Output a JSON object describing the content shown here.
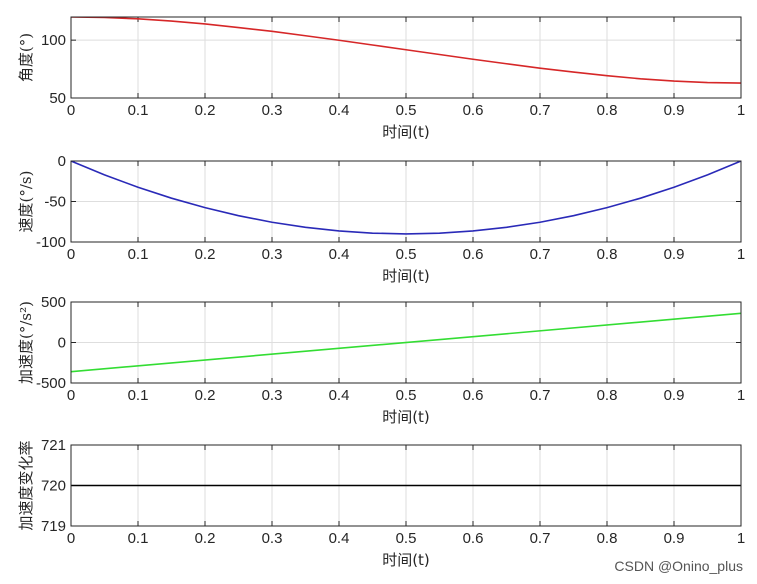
{
  "chart_data": [
    {
      "type": "line",
      "xlabel": "时间(t)",
      "ylabel": "角度(°)",
      "xlim": [
        0,
        1
      ],
      "ylim": [
        50,
        120
      ],
      "xticks": [
        "0",
        "0.1",
        "0.2",
        "0.3",
        "0.4",
        "0.5",
        "0.6",
        "0.7",
        "0.8",
        "0.9",
        "1"
      ],
      "yticks": [
        "50",
        "100"
      ],
      "grid": true,
      "series": [
        {
          "color": "#d62728",
          "x": [
            0,
            0.05,
            0.1,
            0.15,
            0.2,
            0.25,
            0.3,
            0.35,
            0.4,
            0.45,
            0.5,
            0.55,
            0.6,
            0.65,
            0.7,
            0.75,
            0.8,
            0.85,
            0.9,
            0.95,
            1
          ],
          "y": [
            120,
            119.6,
            118.4,
            116.5,
            114,
            110.9,
            107.6,
            103.8,
            99.9,
            95.8,
            91.7,
            87.6,
            83.5,
            79.6,
            75.8,
            72.4,
            69.3,
            66.6,
            64.6,
            63.3,
            62.9
          ]
        }
      ]
    },
    {
      "type": "line",
      "xlabel": "时间(t)",
      "ylabel": "速度(°/s)",
      "xlim": [
        0,
        1
      ],
      "ylim": [
        -100,
        0
      ],
      "xticks": [
        "0",
        "0.1",
        "0.2",
        "0.3",
        "0.4",
        "0.5",
        "0.6",
        "0.7",
        "0.8",
        "0.9",
        "1"
      ],
      "yticks": [
        "-100",
        "-50",
        "0"
      ],
      "grid": true,
      "series": [
        {
          "color": "#2a2ab8",
          "x": [
            0,
            0.05,
            0.1,
            0.15,
            0.2,
            0.25,
            0.3,
            0.35,
            0.4,
            0.45,
            0.5,
            0.55,
            0.6,
            0.65,
            0.7,
            0.75,
            0.8,
            0.85,
            0.9,
            0.95,
            1
          ],
          "y": [
            0,
            -17.1,
            -32.4,
            -45.9,
            -57.6,
            -67.5,
            -75.6,
            -81.9,
            -86.4,
            -89.1,
            -90,
            -89.1,
            -86.4,
            -81.9,
            -75.6,
            -67.5,
            -57.6,
            -45.9,
            -32.4,
            -17.1,
            0
          ]
        }
      ]
    },
    {
      "type": "line",
      "xlabel": "时间(t)",
      "ylabel": "加速度(°/s²)",
      "xlim": [
        0,
        1
      ],
      "ylim": [
        -500,
        500
      ],
      "xticks": [
        "0",
        "0.1",
        "0.2",
        "0.3",
        "0.4",
        "0.5",
        "0.6",
        "0.7",
        "0.8",
        "0.9",
        "1"
      ],
      "yticks": [
        "-500",
        "0",
        "500"
      ],
      "grid": true,
      "series": [
        {
          "color": "#33dd33",
          "x": [
            0,
            1
          ],
          "y": [
            -360,
            360
          ]
        }
      ]
    },
    {
      "type": "line",
      "xlabel": "时间(t)",
      "ylabel": "加速度变化率",
      "xlim": [
        0,
        1
      ],
      "ylim": [
        719,
        721
      ],
      "xticks": [
        "0",
        "0.1",
        "0.2",
        "0.3",
        "0.4",
        "0.5",
        "0.6",
        "0.7",
        "0.8",
        "0.9",
        "1"
      ],
      "yticks": [
        "719",
        "720",
        "721"
      ],
      "grid": true,
      "series": [
        {
          "color": "#000000",
          "x": [
            0,
            1
          ],
          "y": [
            720,
            720
          ]
        }
      ]
    }
  ],
  "watermark": "CSDN @Onino_plus"
}
